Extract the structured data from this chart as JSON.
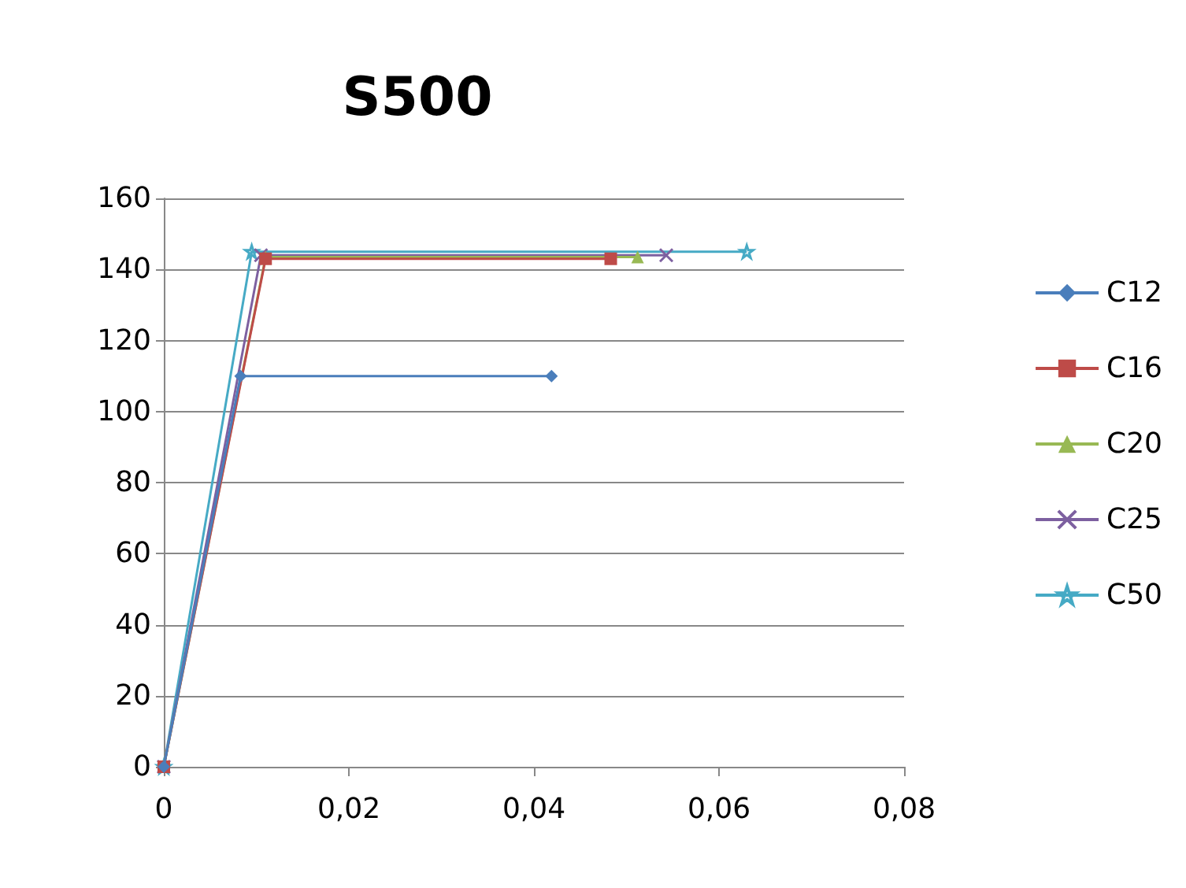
{
  "chart_data": {
    "type": "line",
    "title": "S500",
    "xlim": [
      0,
      0.08
    ],
    "xticks": [
      {
        "value": 0,
        "label": "0"
      },
      {
        "value": 0.02,
        "label": "0,02"
      },
      {
        "value": 0.04,
        "label": "0,04"
      },
      {
        "value": 0.06,
        "label": "0,06"
      },
      {
        "value": 0.08,
        "label": "0,08"
      }
    ],
    "ylim": [
      0,
      160
    ],
    "yticks": [
      0,
      20,
      40,
      60,
      80,
      100,
      120,
      140,
      160
    ],
    "grid": "y",
    "legend": "right",
    "line_style": "solid",
    "series": [
      {
        "name": "C12",
        "color": "#4a7ebb",
        "marker": "diamond",
        "x": [
          0,
          0.0083,
          0.0419
        ],
        "values": [
          0,
          110,
          110
        ]
      },
      {
        "name": "C16",
        "color": "#be4b48",
        "marker": "square",
        "x": [
          0,
          0.011,
          0.0483
        ],
        "values": [
          0,
          143,
          143
        ]
      },
      {
        "name": "C20",
        "color": "#98b954",
        "marker": "triangle",
        "x": [
          0,
          0.011,
          0.0512
        ],
        "values": [
          0,
          143.5,
          143.5
        ]
      },
      {
        "name": "C25",
        "color": "#7d60a0",
        "marker": "cross",
        "x": [
          0,
          0.0105,
          0.0543
        ],
        "values": [
          0,
          144,
          144
        ]
      },
      {
        "name": "C50",
        "color": "#46aac5",
        "marker": "star",
        "x": [
          0,
          0.0095,
          0.063
        ],
        "values": [
          0,
          145,
          145
        ]
      }
    ]
  }
}
